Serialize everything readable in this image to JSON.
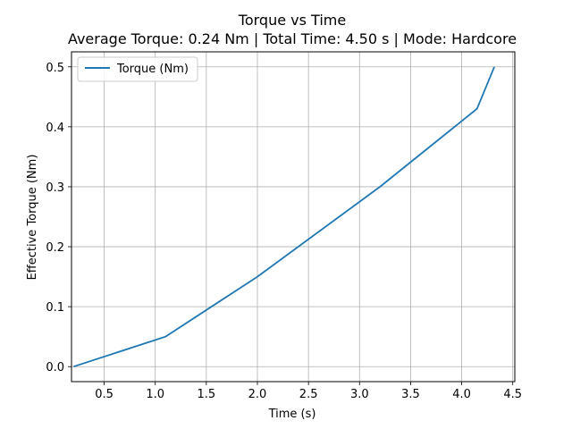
{
  "chart_data": {
    "type": "line",
    "title": "Torque vs Time",
    "subtitle": "Average Torque: 0.24 Nm | Total Time: 4.50 s | Mode: Hardcore",
    "xlabel": "Time (s)",
    "ylabel": "Effective Torque (Nm)",
    "xlim": [
      0.18,
      4.52
    ],
    "ylim": [
      -0.025,
      0.525
    ],
    "xticks": [
      0.5,
      1.0,
      1.5,
      2.0,
      2.5,
      3.0,
      3.5,
      4.0,
      4.5
    ],
    "xtick_labels": [
      "0.5",
      "1.0",
      "1.5",
      "2.0",
      "2.5",
      "3.0",
      "3.5",
      "4.0",
      "4.5"
    ],
    "yticks": [
      0.0,
      0.1,
      0.2,
      0.3,
      0.4,
      0.5
    ],
    "ytick_labels": [
      "0.0",
      "0.1",
      "0.2",
      "0.3",
      "0.4",
      "0.5"
    ],
    "grid": true,
    "legend_position": "upper-left",
    "series": [
      {
        "name": "Torque (Nm)",
        "color": "#1f77b4",
        "x": [
          0.2,
          1.1,
          2.0,
          3.2,
          4.15,
          4.32
        ],
        "y": [
          0.0,
          0.05,
          0.15,
          0.3,
          0.43,
          0.5
        ]
      }
    ]
  }
}
